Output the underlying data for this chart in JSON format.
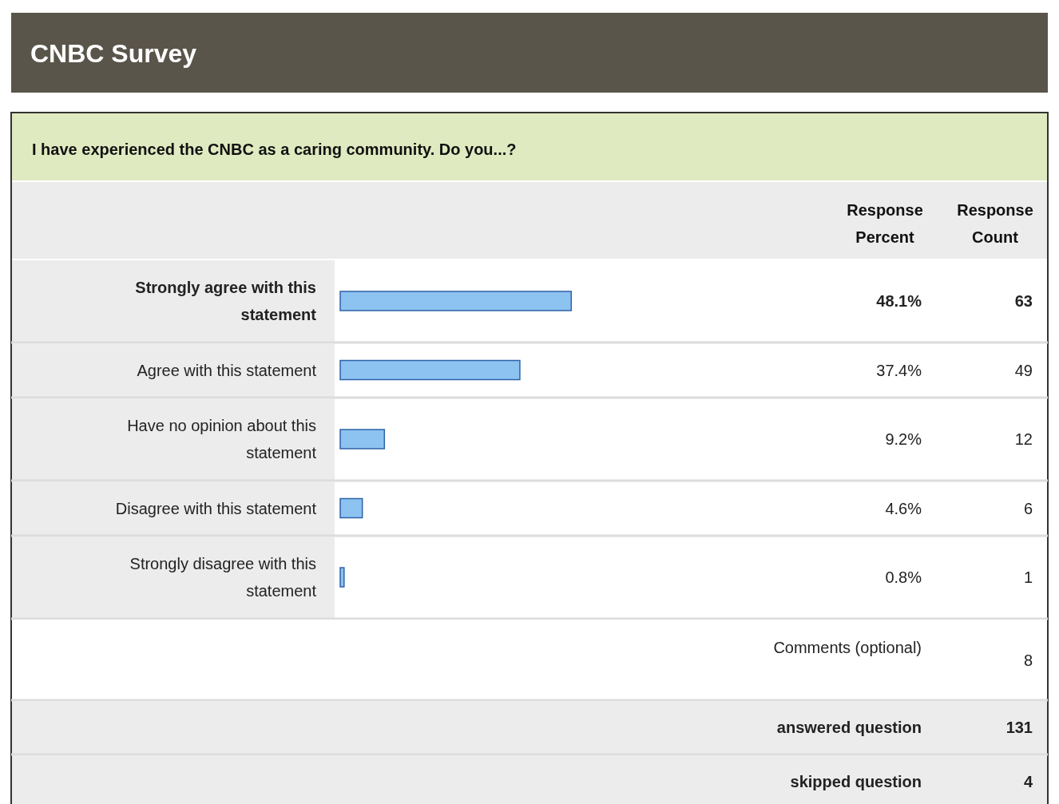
{
  "chart_data": {
    "type": "bar",
    "orientation": "horizontal",
    "title": "CNBC Survey",
    "subtitle": "I have experienced the CNBC as a caring community. Do you...?",
    "categories": [
      "Strongly agree with this statement",
      "Agree with this statement",
      "Have no opinion about this statement",
      "Disagree with this statement",
      "Strongly disagree with this statement"
    ],
    "values": [
      48.1,
      37.4,
      9.2,
      4.6,
      0.8
    ],
    "value_labels": [
      "48.1%",
      "37.4%",
      "9.2%",
      "4.6%",
      "0.8%"
    ],
    "color": "#8cc3f0",
    "annotations": [
      "Response Percent",
      "Response Count",
      "63",
      "49",
      "12",
      "6",
      "1",
      "Comments (optional)",
      "8",
      "answered question",
      "131",
      "skipped question",
      "4"
    ]
  }
}
